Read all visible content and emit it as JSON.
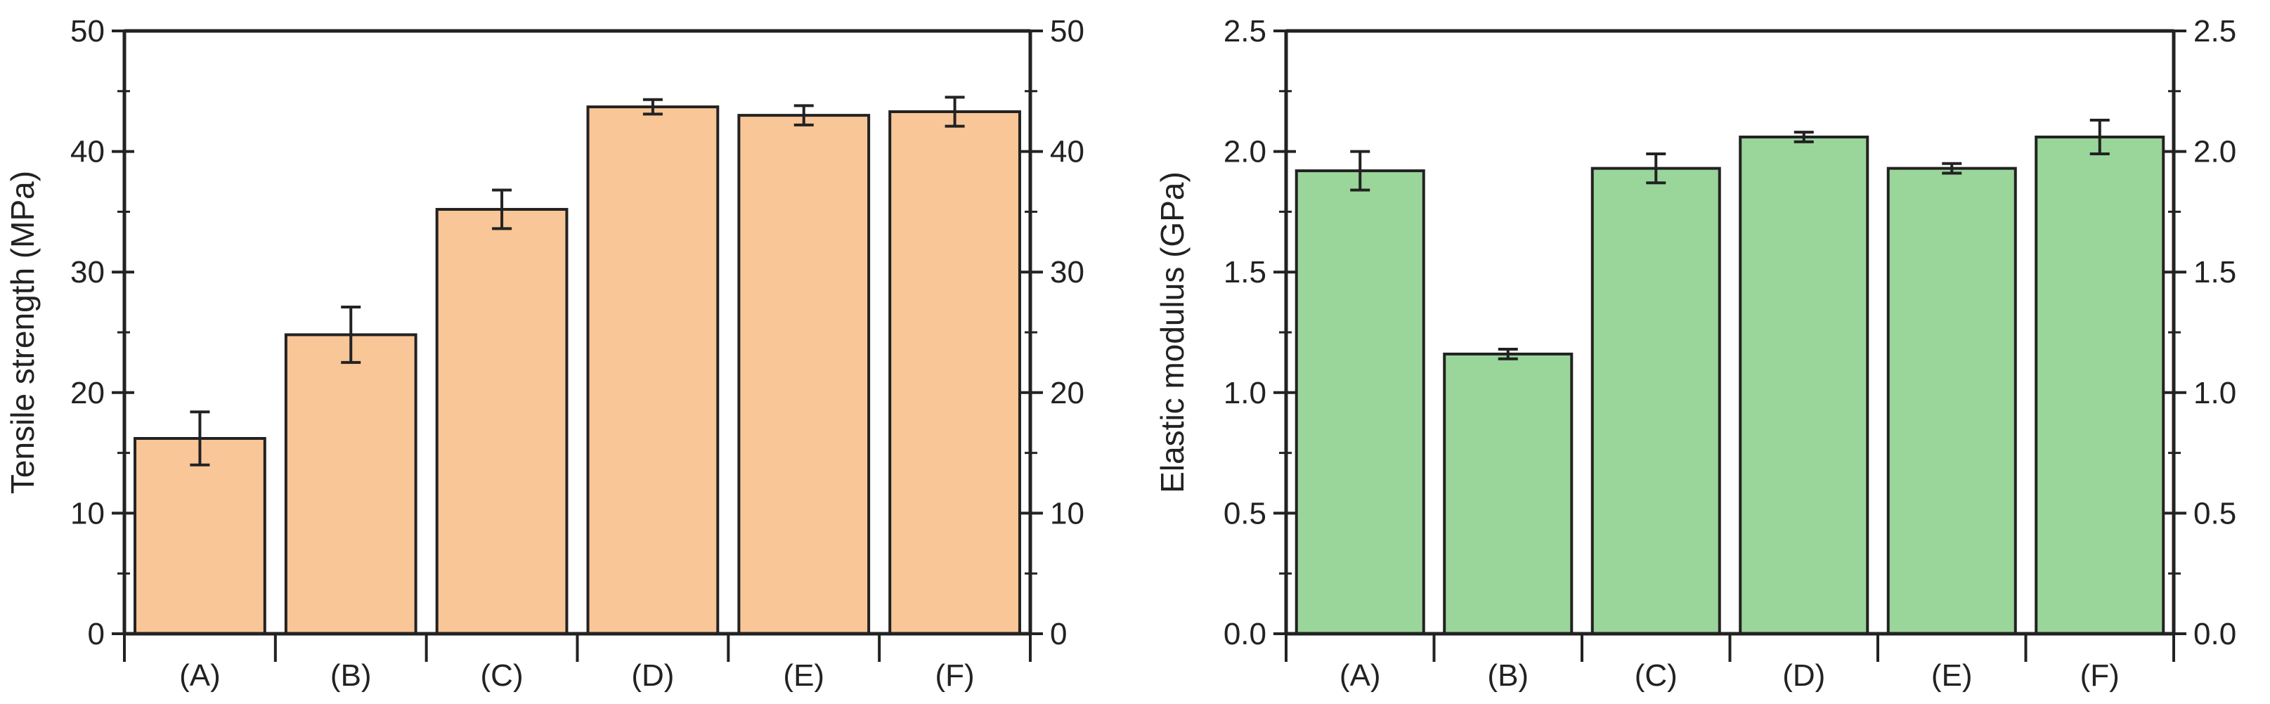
{
  "colors": {
    "left_bar": "#f9c697",
    "right_bar": "#9ad59a",
    "stroke": "#222222",
    "background": "#ffffff"
  },
  "chart_data": [
    {
      "type": "bar",
      "title": "",
      "xlabel": "",
      "ylabel": "Tensile strength (MPa)",
      "ylim": [
        0,
        50
      ],
      "yticks": [
        0,
        10,
        20,
        30,
        40,
        50
      ],
      "ytick_labels": [
        "0",
        "10",
        "20",
        "30",
        "40",
        "50"
      ],
      "right_axis_mirror": true,
      "categories": [
        "(A)",
        "(B)",
        "(C)",
        "(D)",
        "(E)",
        "(F)"
      ],
      "values": [
        16.2,
        24.8,
        35.2,
        43.7,
        43.0,
        43.3
      ],
      "errors": [
        2.2,
        2.3,
        1.6,
        0.6,
        0.8,
        1.2
      ]
    },
    {
      "type": "bar",
      "title": "",
      "xlabel": "",
      "ylabel": "Elastic modulus (GPa)",
      "ylim": [
        0,
        2.5
      ],
      "yticks": [
        0,
        0.5,
        1.0,
        1.5,
        2.0,
        2.5
      ],
      "ytick_labels": [
        "0.0",
        "0.5",
        "1.0",
        "1.5",
        "2.0",
        "2.5"
      ],
      "right_axis_mirror": true,
      "categories": [
        "(A)",
        "(B)",
        "(C)",
        "(D)",
        "(E)",
        "(F)"
      ],
      "values": [
        1.92,
        1.16,
        1.93,
        2.06,
        1.93,
        2.06
      ],
      "errors": [
        0.08,
        0.02,
        0.06,
        0.02,
        0.02,
        0.07
      ]
    }
  ]
}
